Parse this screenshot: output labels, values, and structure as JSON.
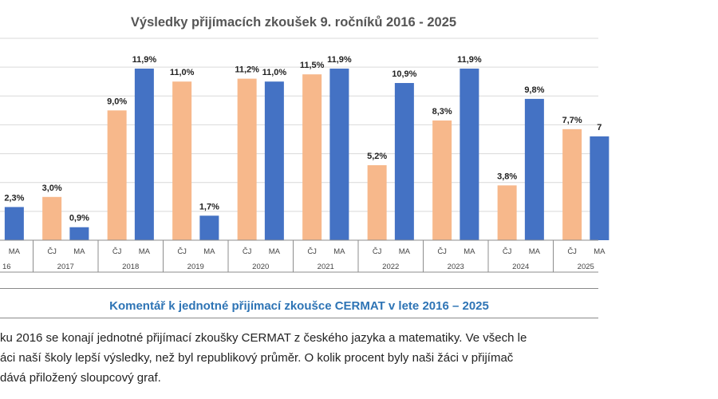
{
  "chart_data": {
    "type": "bar",
    "title": "Výsledky přijímacích zkoušek 9. ročníků 2016 - 2025",
    "year_groups": [
      "16",
      "2017",
      "2018",
      "2019",
      "2020",
      "2021",
      "2022",
      "2023",
      "2024",
      "2025"
    ],
    "bars": [
      {
        "year": "16",
        "subject": "MA",
        "value": 2.3,
        "label": "2,3%"
      },
      {
        "year": "2017",
        "subject": "ČJ",
        "value": 3.0,
        "label": "3,0%"
      },
      {
        "year": "2017",
        "subject": "MA",
        "value": 0.9,
        "label": "0,9%"
      },
      {
        "year": "2018",
        "subject": "ČJ",
        "value": 9.0,
        "label": "9,0%"
      },
      {
        "year": "2018",
        "subject": "MA",
        "value": 11.9,
        "label": "11,9%"
      },
      {
        "year": "2019",
        "subject": "ČJ",
        "value": 11.0,
        "label": "11,0%"
      },
      {
        "year": "2019",
        "subject": "MA",
        "value": 1.7,
        "label": "1,7%"
      },
      {
        "year": "2020",
        "subject": "ČJ",
        "value": 11.2,
        "label": "11,2%"
      },
      {
        "year": "2020",
        "subject": "MA",
        "value": 11.0,
        "label": "11,0%"
      },
      {
        "year": "2021",
        "subject": "ČJ",
        "value": 11.5,
        "label": "11,5%"
      },
      {
        "year": "2021",
        "subject": "MA",
        "value": 11.9,
        "label": "11,9%"
      },
      {
        "year": "2022",
        "subject": "ČJ",
        "value": 5.2,
        "label": "5,2%"
      },
      {
        "year": "2022",
        "subject": "MA",
        "value": 10.9,
        "label": "10,9%"
      },
      {
        "year": "2023",
        "subject": "ČJ",
        "value": 8.3,
        "label": "8,3%"
      },
      {
        "year": "2023",
        "subject": "MA",
        "value": 11.9,
        "label": "11,9%"
      },
      {
        "year": "2024",
        "subject": "ČJ",
        "value": 3.8,
        "label": "3,8%"
      },
      {
        "year": "2024",
        "subject": "MA",
        "value": 9.8,
        "label": "9,8%"
      },
      {
        "year": "2025",
        "subject": "ČJ",
        "value": 7.7,
        "label": "7,7%"
      },
      {
        "year": "2025",
        "subject": "MA",
        "value": 7.2,
        "label": "7"
      }
    ],
    "ylim": [
      0,
      14
    ],
    "grid": true,
    "colors": {
      "ČJ": "#f7b88b",
      "MA": "#4472c4"
    }
  },
  "comment": {
    "title": "Komentář k jednotné přijímací zkoušce CERMAT v lete 2016 – 2025",
    "lines": [
      "ku 2016 se konají jednotné přijímací zkoušky CERMAT z českého jazyka a matematiky. Ve všech le",
      "áci naší školy lepší výsledky, než byl republikový průměr. O kolik procent byly naši žáci v přijímač",
      "dává přiložený sloupcový graf."
    ]
  }
}
